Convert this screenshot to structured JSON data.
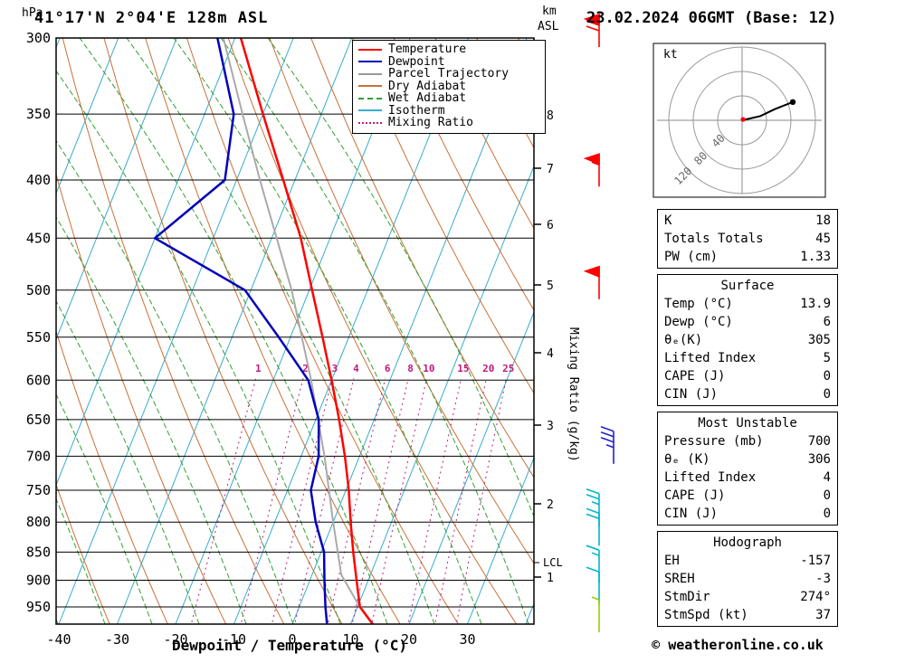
{
  "header": {
    "left_unit": "hPa",
    "station_title": "41°17'N 2°04'E 128m ASL",
    "altitude_unit_km": "km",
    "altitude_unit_asl": "ASL",
    "datetime_title": "23.02.2024 06GMT (Base: 12)"
  },
  "legend": {
    "items": [
      {
        "label": "Temperature",
        "color": "#ff0000",
        "dash": "solid"
      },
      {
        "label": "Dewpoint",
        "color": "#0000bb",
        "dash": "solid"
      },
      {
        "label": "Parcel Trajectory",
        "color": "#999999",
        "dash": "solid"
      },
      {
        "label": "Dry Adiabat",
        "color": "#c87137",
        "dash": "solid"
      },
      {
        "label": "Wet Adiabat",
        "color": "#33a033",
        "dash": "dashed"
      },
      {
        "label": "Isotherm",
        "color": "#3aaccc",
        "dash": "solid"
      },
      {
        "label": "Mixing Ratio",
        "color": "#c2187c",
        "dash": "dotted"
      }
    ]
  },
  "chart_data": {
    "type": "line",
    "subtype": "skew-t-log-p-sounding",
    "title": "41°17'N 2°04'E 128m ASL",
    "xlabel": "Dewpoint / Temperature (°C)",
    "ylabel_left": "hPa",
    "ylabel_right": "km ASL",
    "right_label": "Mixing Ratio (g/kg)",
    "pressure_ticks": [
      300,
      350,
      400,
      450,
      500,
      550,
      600,
      650,
      700,
      750,
      800,
      850,
      900,
      950
    ],
    "temp_ticks": [
      -40,
      -30,
      -20,
      -10,
      0,
      10,
      20,
      30
    ],
    "km_tick_labels": [
      "8",
      "7",
      "6",
      "5",
      "4",
      "3",
      "2",
      "1"
    ],
    "lcl_label": "LCL",
    "mixing_ratio_values": [
      1,
      2,
      3,
      4,
      6,
      8,
      10,
      15,
      20,
      25
    ],
    "pressure_range": [
      300,
      985
    ],
    "temp_range": [
      -40,
      40
    ],
    "grid": true,
    "legend_position": "top-right",
    "series": [
      {
        "name": "Temperature",
        "color": "#ff0000",
        "points": [
          [
            985,
            13.9
          ],
          [
            950,
            10.4
          ],
          [
            900,
            8
          ],
          [
            850,
            5.5
          ],
          [
            800,
            3
          ],
          [
            750,
            0.5
          ],
          [
            700,
            -2.5
          ],
          [
            650,
            -6
          ],
          [
            600,
            -10
          ],
          [
            550,
            -14.5
          ],
          [
            500,
            -19.5
          ],
          [
            450,
            -25
          ],
          [
            400,
            -32
          ],
          [
            350,
            -40
          ],
          [
            300,
            -49
          ]
        ]
      },
      {
        "name": "Dewpoint",
        "color": "#0000bb",
        "points": [
          [
            985,
            6
          ],
          [
            950,
            4.5
          ],
          [
            900,
            2.5
          ],
          [
            850,
            0.5
          ],
          [
            800,
            -3
          ],
          [
            750,
            -6
          ],
          [
            700,
            -7
          ],
          [
            650,
            -9.5
          ],
          [
            600,
            -14
          ],
          [
            550,
            -22
          ],
          [
            500,
            -31
          ],
          [
            450,
            -50
          ],
          [
            400,
            -42
          ],
          [
            350,
            -45
          ],
          [
            300,
            -53
          ]
        ]
      },
      {
        "name": "Parcel Trajectory",
        "color": "#aaaaaa",
        "points": [
          [
            985,
            13.9
          ],
          [
            940,
            9.5
          ],
          [
            890,
            5
          ],
          [
            800,
            0
          ],
          [
            700,
            -6
          ],
          [
            600,
            -13.5
          ],
          [
            500,
            -23
          ],
          [
            400,
            -36
          ],
          [
            350,
            -43.5
          ],
          [
            300,
            -52
          ]
        ]
      }
    ],
    "winds": [
      {
        "p": 300,
        "speed_kt": 70,
        "color": "#ff0000"
      },
      {
        "p": 398,
        "speed_kt": 55,
        "color": "#ff0000"
      },
      {
        "p": 500,
        "speed_kt": 50,
        "color": "#ff0000"
      },
      {
        "p": 698,
        "speed_kt": 35,
        "color": "#2222cc",
        "x_offset": 16
      },
      {
        "p": 792,
        "speed_kt": 25,
        "color": "#00b7c8"
      },
      {
        "p": 824,
        "speed_kt": 20,
        "color": "#00b7c8"
      },
      {
        "p": 888,
        "speed_kt": 15,
        "color": "#00b7c8"
      },
      {
        "p": 928,
        "speed_kt": 10,
        "color": "#00b7c8"
      },
      {
        "p": 982,
        "speed_kt": 5,
        "color": "#9acd00"
      }
    ]
  },
  "hodograph": {
    "unit": "kt",
    "ring_labels": [
      "40",
      "80",
      "120"
    ],
    "trace_uv_kt": [
      [
        0,
        0
      ],
      [
        30,
        7
      ],
      [
        53,
        18
      ],
      [
        83,
        30
      ]
    ]
  },
  "tables": {
    "indices": {
      "rows": [
        {
          "label": "K",
          "value": "18"
        },
        {
          "label": "Totals Totals",
          "value": "45"
        },
        {
          "label": "PW (cm)",
          "value": "1.33"
        }
      ]
    },
    "surface": {
      "title": "Surface",
      "rows": [
        {
          "label": "Temp (°C)",
          "value": "13.9"
        },
        {
          "label": "Dewp (°C)",
          "value": "6"
        },
        {
          "label": "θₑ(K)",
          "value": "305"
        },
        {
          "label": "Lifted Index",
          "value": "5"
        },
        {
          "label": "CAPE (J)",
          "value": "0"
        },
        {
          "label": "CIN (J)",
          "value": "0"
        }
      ]
    },
    "most_unstable": {
      "title": "Most Unstable",
      "rows": [
        {
          "label": "Pressure (mb)",
          "value": "700"
        },
        {
          "label": "θₑ (K)",
          "value": "306"
        },
        {
          "label": "Lifted Index",
          "value": "4"
        },
        {
          "label": "CAPE (J)",
          "value": "0"
        },
        {
          "label": "CIN (J)",
          "value": "0"
        }
      ]
    },
    "hodograph_stats": {
      "title": "Hodograph",
      "rows": [
        {
          "label": "EH",
          "value": "-157"
        },
        {
          "label": "SREH",
          "value": "-3"
        },
        {
          "label": "StmDir",
          "value": "274°"
        },
        {
          "label": "StmSpd (kt)",
          "value": "37"
        }
      ]
    }
  },
  "footer": {
    "copyright": "© weatheronline.co.uk"
  }
}
